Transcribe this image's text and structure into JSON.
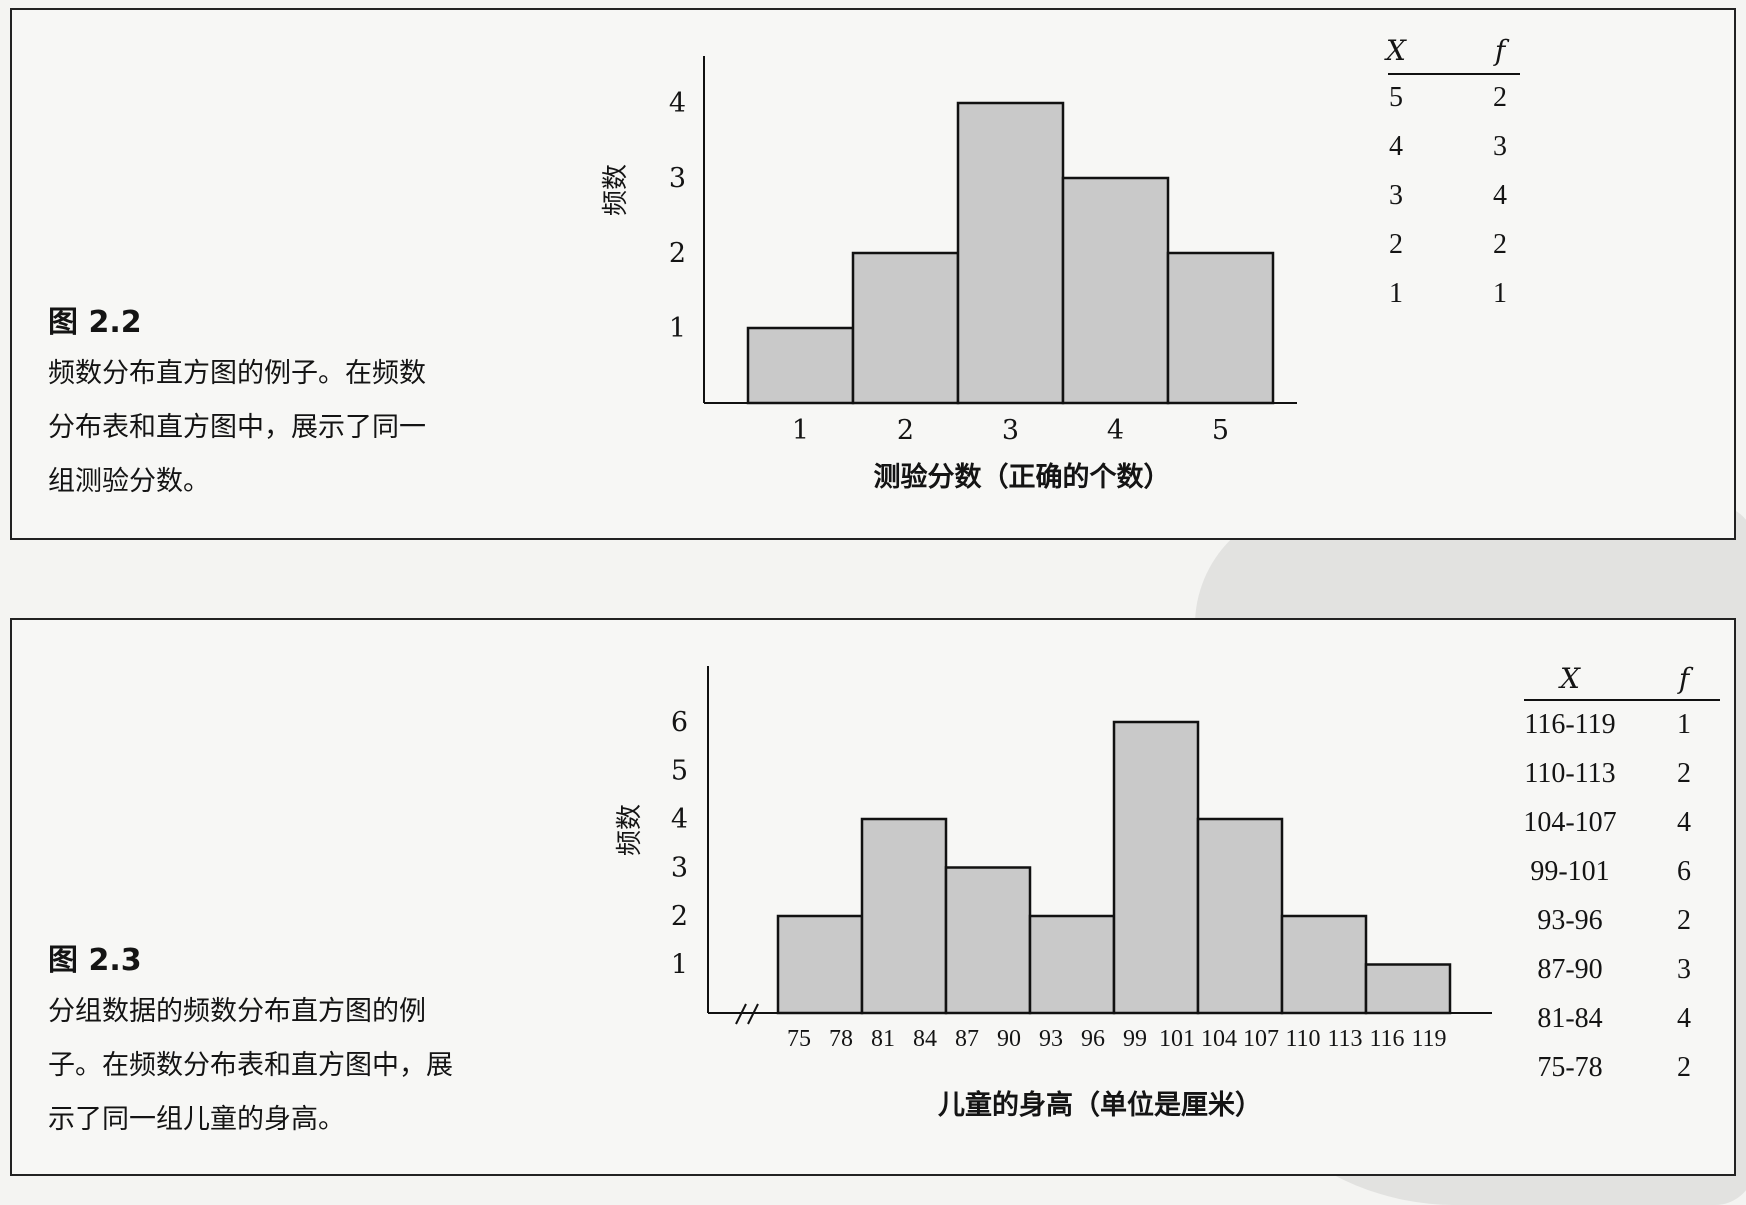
{
  "figures": [
    {
      "caption_title": "图 2.2",
      "caption_text": "频数分布直方图的例子。在频数\n分布表和直方图中，展示了同一\n组测验分数。"
    },
    {
      "caption_title": "图 2.3",
      "caption_text": "分组数据的频数分布直方图的例\n子。在频数分布表和直方图中，展\n示了同一组儿童的身高。"
    }
  ],
  "chart_data": [
    {
      "type": "bar",
      "title": "",
      "xlabel": "测验分数（正确的个数）",
      "ylabel": "频数",
      "categories": [
        "1",
        "2",
        "3",
        "4",
        "5"
      ],
      "values": [
        1,
        2,
        4,
        3,
        2
      ],
      "yticks": [
        "1",
        "2",
        "3",
        "4"
      ],
      "ylim": [
        0,
        4
      ],
      "grid": false,
      "table": {
        "headers": [
          "X",
          "f"
        ],
        "rows": [
          [
            "5",
            "2"
          ],
          [
            "4",
            "3"
          ],
          [
            "3",
            "4"
          ],
          [
            "2",
            "2"
          ],
          [
            "1",
            "1"
          ]
        ]
      }
    },
    {
      "type": "bar",
      "title": "",
      "xlabel": "儿童的身高（单位是厘米）",
      "ylabel": "频数",
      "categories": [
        "75-78",
        "81-84",
        "87-90",
        "93-96",
        "99-101",
        "104-107",
        "110-113",
        "116-119"
      ],
      "tick_labels": [
        "75",
        "78",
        "81",
        "84",
        "87",
        "90",
        "93",
        "96",
        "99",
        "101",
        "104",
        "107",
        "110",
        "113",
        "116",
        "119"
      ],
      "values": [
        2,
        4,
        3,
        2,
        6,
        4,
        2,
        1
      ],
      "yticks": [
        "1",
        "2",
        "3",
        "4",
        "5",
        "6"
      ],
      "ylim": [
        0,
        6
      ],
      "grid": false,
      "axis_break": true,
      "table": {
        "headers": [
          "X",
          "f"
        ],
        "rows": [
          [
            "116-119",
            "1"
          ],
          [
            "110-113",
            "2"
          ],
          [
            "104-107",
            "4"
          ],
          [
            "99-101",
            "6"
          ],
          [
            "93-96",
            "2"
          ],
          [
            "87-90",
            "3"
          ],
          [
            "81-84",
            "4"
          ],
          [
            "75-78",
            "2"
          ]
        ]
      }
    }
  ]
}
